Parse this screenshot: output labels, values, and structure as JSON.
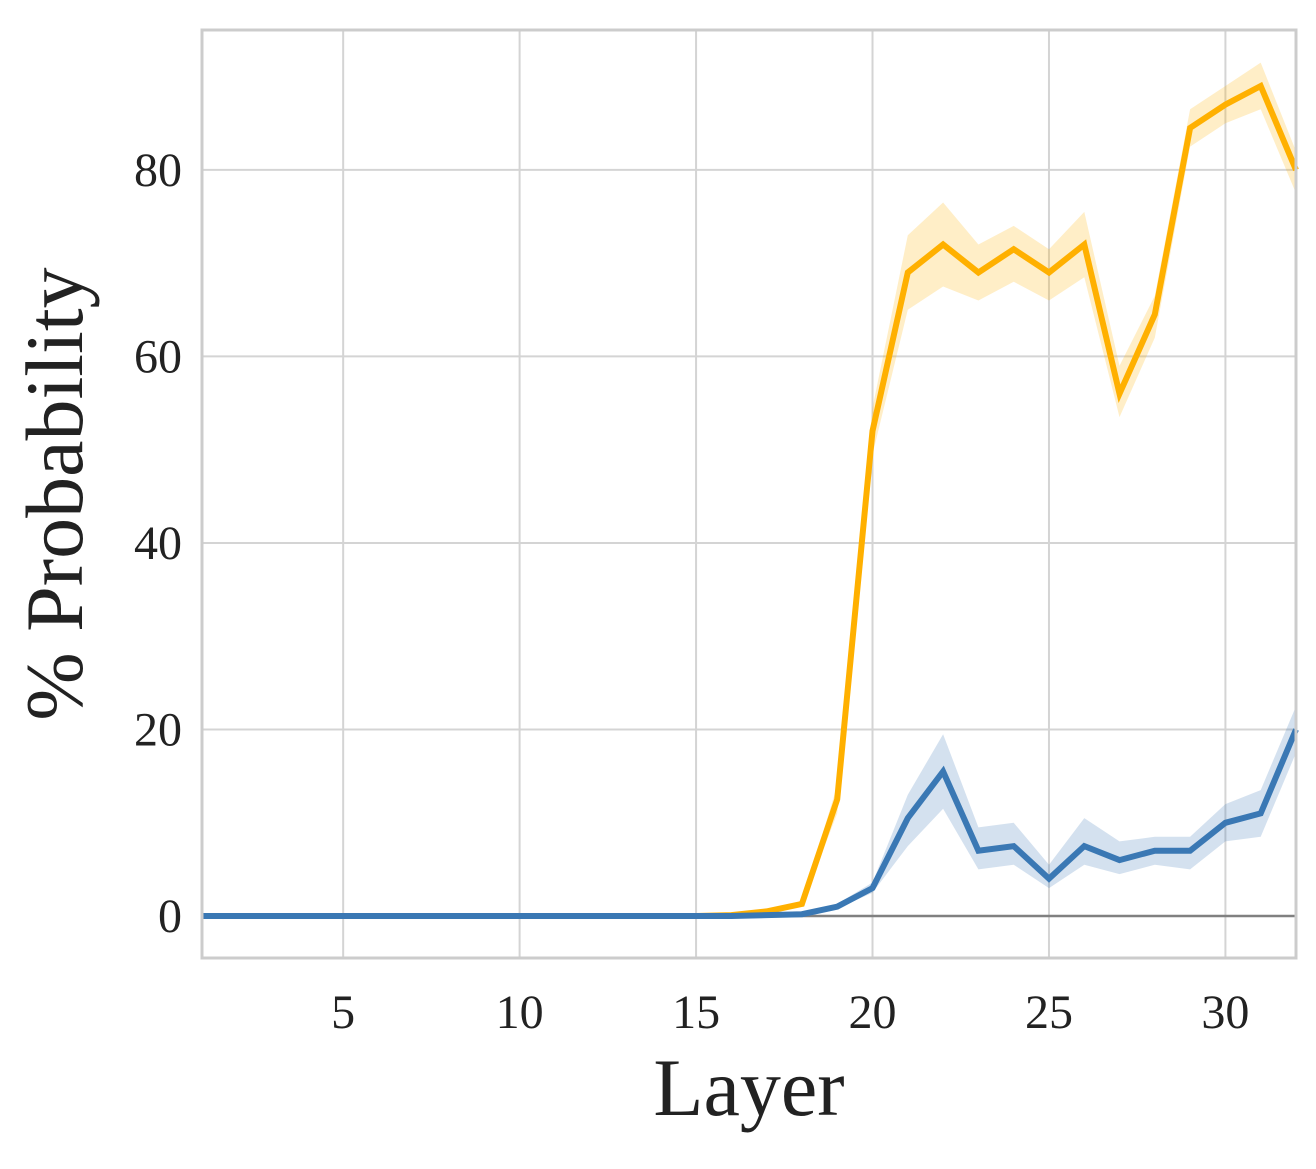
{
  "chart_data": {
    "type": "line",
    "title": "",
    "xlabel": "Layer",
    "ylabel": "% Probability",
    "xlim": [
      1,
      32
    ],
    "ylim": [
      -4.5,
      95
    ],
    "xticks": [
      5,
      10,
      15,
      20,
      25,
      30
    ],
    "yticks": [
      0,
      20,
      40,
      60,
      80
    ],
    "grid": true,
    "x": [
      1,
      2,
      3,
      4,
      5,
      6,
      7,
      8,
      9,
      10,
      11,
      12,
      13,
      14,
      15,
      16,
      17,
      18,
      19,
      20,
      21,
      22,
      23,
      24,
      25,
      26,
      27,
      28,
      29,
      30,
      31,
      32
    ],
    "series": [
      {
        "color": "#ffb000",
        "values": [
          0,
          0,
          0,
          0,
          0,
          0,
          0,
          0,
          0,
          0,
          0,
          0,
          0,
          0,
          0,
          0.1,
          0.5,
          1.3,
          12.5,
          52,
          69,
          72,
          69,
          71.5,
          69,
          72,
          56,
          64.5,
          84.5,
          87,
          89,
          80
        ],
        "band_lower": [
          0,
          0,
          0,
          0,
          0,
          0,
          0,
          0,
          0,
          0,
          0,
          0,
          0,
          0,
          0,
          0.1,
          0.4,
          1.1,
          11,
          49.5,
          65,
          67.5,
          66,
          68,
          66,
          68.5,
          53.5,
          62,
          82.5,
          85,
          86.5,
          77.5
        ],
        "band_upper": [
          0,
          0,
          0,
          0,
          0,
          0,
          0,
          0,
          0,
          0,
          0,
          0,
          0,
          0,
          0,
          0.1,
          0.6,
          1.5,
          14,
          54.5,
          73,
          76.5,
          72,
          74,
          71.5,
          75.5,
          59,
          66.5,
          86.5,
          89,
          91.5,
          82
        ]
      },
      {
        "color": "#3a78b4",
        "values": [
          0,
          0,
          0,
          0,
          0,
          0,
          0,
          0,
          0,
          0,
          0,
          0,
          0,
          0,
          0,
          0,
          0.1,
          0.2,
          1,
          3,
          10.5,
          15.5,
          7,
          7.5,
          4,
          7.5,
          6,
          7,
          7,
          10,
          11,
          20
        ],
        "band_lower": [
          0,
          0,
          0,
          0,
          0,
          0,
          0,
          0,
          0,
          0,
          0,
          0,
          0,
          0,
          0,
          0,
          0.1,
          0.1,
          0.8,
          2.5,
          7.5,
          11.5,
          5,
          5.5,
          3,
          5.5,
          4.5,
          5.5,
          5,
          8,
          8.5,
          17.5
        ],
        "band_upper": [
          0,
          0,
          0,
          0,
          0,
          0,
          0,
          0,
          0,
          0,
          0,
          0,
          0,
          0,
          0,
          0,
          0.1,
          0.3,
          1.3,
          3.6,
          13,
          19.5,
          9.5,
          10,
          5.5,
          10.5,
          8,
          8.5,
          8.5,
          12,
          13.5,
          22.5
        ]
      }
    ]
  }
}
